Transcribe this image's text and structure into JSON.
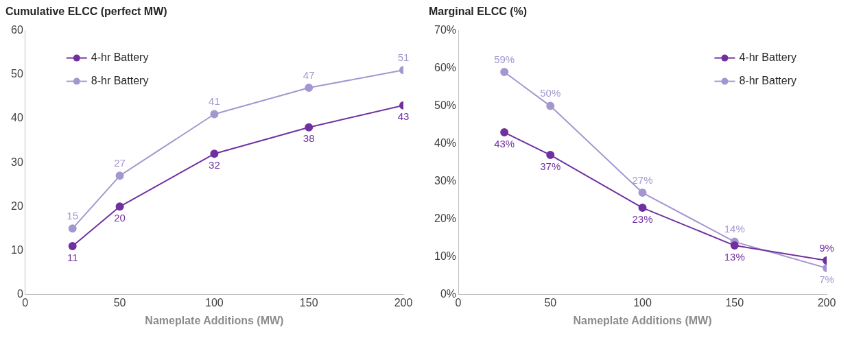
{
  "chart_data": [
    {
      "type": "line",
      "title": "Cumulative ELCC (perfect MW)",
      "xlabel": "Nameplate Additions (MW)",
      "x": [
        25,
        50,
        100,
        150,
        200
      ],
      "series": [
        {
          "name": "4-hr Battery",
          "color": "#7030a0",
          "values": [
            11,
            20,
            32,
            38,
            43
          ],
          "value_labels": [
            "11",
            "20",
            "32",
            "38",
            "43"
          ]
        },
        {
          "name": "8-hr Battery",
          "color": "#a497cf",
          "values": [
            15,
            27,
            41,
            47,
            51
          ],
          "value_labels": [
            "15",
            "27",
            "41",
            "47",
            "51"
          ]
        }
      ],
      "xlim": [
        0,
        200
      ],
      "xticks": [
        0,
        50,
        100,
        150,
        200
      ],
      "ylim": [
        0,
        60
      ],
      "yticks": [
        0,
        10,
        20,
        30,
        40,
        50,
        60
      ],
      "grid": false,
      "legend": "top left",
      "marker": "circle",
      "line_style": "solid"
    },
    {
      "type": "line",
      "title": "Marginal ELCC (%)",
      "xlabel": "Nameplate Additions (MW)",
      "x": [
        25,
        50,
        100,
        150,
        200
      ],
      "series": [
        {
          "name": "4-hr Battery",
          "color": "#7030a0",
          "values": [
            43,
            37,
            23,
            13,
            9
          ],
          "value_labels": [
            "43%",
            "37%",
            "23%",
            "13%",
            "9%"
          ]
        },
        {
          "name": "8-hr Battery",
          "color": "#a497cf",
          "values": [
            59,
            50,
            27,
            14,
            7
          ],
          "value_labels": [
            "59%",
            "50%",
            "27%",
            "14%",
            "7%"
          ]
        }
      ],
      "xlim": [
        0,
        200
      ],
      "xticks": [
        0,
        50,
        100,
        150,
        200
      ],
      "ylim": [
        0,
        70
      ],
      "yticks": [
        {
          "value": 0,
          "label": "0%"
        },
        {
          "value": 10,
          "label": "10%"
        },
        {
          "value": 20,
          "label": "20%"
        },
        {
          "value": 30,
          "label": "30%"
        },
        {
          "value": 40,
          "label": "40%"
        },
        {
          "value": 50,
          "label": "50%"
        },
        {
          "value": 60,
          "label": "60%"
        },
        {
          "value": 70,
          "label": "70%"
        }
      ],
      "grid": false,
      "legend": "top right",
      "marker": "circle",
      "line_style": "solid"
    }
  ]
}
